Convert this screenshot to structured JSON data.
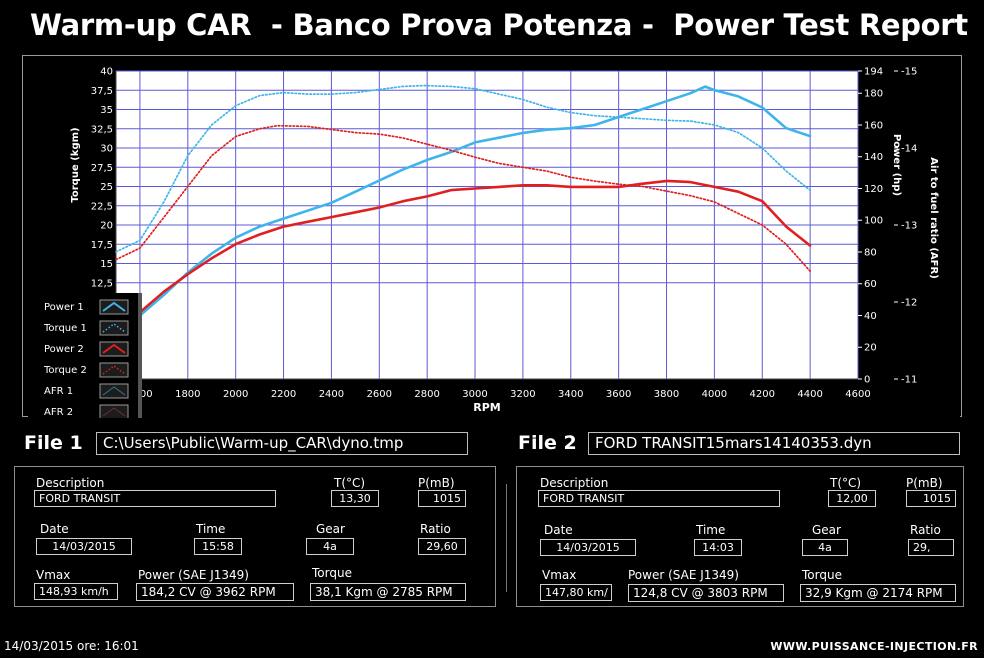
{
  "header": {
    "title": "Warm-up CAR  - Banco Prova Potenza -  Power Test Report"
  },
  "chart_data": {
    "type": "line",
    "xlabel": "RPM",
    "x_ticks": [
      "1600",
      "1800",
      "2000",
      "2200",
      "2400",
      "2600",
      "2800",
      "3000",
      "3200",
      "3400",
      "3600",
      "3800",
      "4000",
      "4200",
      "4400",
      "4600"
    ],
    "xlim": [
      1500,
      4600
    ],
    "y_left": {
      "label": "Torque (kgm)",
      "lim": [
        0,
        40
      ],
      "ticks": [
        "12,5",
        "15",
        "17,5",
        "20",
        "22,5",
        "25",
        "27,5",
        "30",
        "32,5",
        "35",
        "37,5",
        "40"
      ]
    },
    "y_right1": {
      "label": "Power (hp)",
      "lim": [
        0,
        194
      ],
      "ticks": [
        "0",
        "20",
        "40",
        "60",
        "80",
        "100",
        "120",
        "140",
        "160",
        "180",
        "194"
      ]
    },
    "y_right2": {
      "label": "Air to fuel ratio (AFR)",
      "lim": [
        -11,
        -15
      ],
      "ticks": [
        "-11",
        "-12",
        "-13",
        "-14",
        "-15"
      ]
    },
    "grid": true,
    "legend_position": "bottom-left",
    "series": [
      {
        "name": "Power 1",
        "axis": "power",
        "color": "#3fb4ea",
        "style": "solid",
        "x": [
          1500,
          1600,
          1700,
          1800,
          1900,
          2000,
          2100,
          2200,
          2300,
          2400,
          2500,
          2600,
          2700,
          2800,
          2900,
          3000,
          3100,
          3200,
          3300,
          3400,
          3500,
          3600,
          3700,
          3800,
          3900,
          3962,
          4000,
          4100,
          4200,
          4300,
          4400
        ],
        "y": [
          33,
          40,
          53,
          67,
          79,
          89,
          96,
          101,
          106,
          111,
          118,
          125,
          132,
          138,
          143,
          149,
          152,
          155,
          157,
          158,
          160,
          165,
          170,
          175,
          180,
          184.2,
          182,
          178,
          171,
          158,
          153
        ]
      },
      {
        "name": "Torque 1",
        "axis": "torque",
        "color": "#3fb4ea",
        "style": "dotted",
        "x": [
          1500,
          1600,
          1700,
          1800,
          1900,
          2000,
          2100,
          2200,
          2300,
          2400,
          2500,
          2600,
          2700,
          2785,
          2900,
          3000,
          3100,
          3200,
          3300,
          3400,
          3500,
          3600,
          3700,
          3800,
          3900,
          4000,
          4100,
          4200,
          4300,
          4400
        ],
        "y": [
          16.5,
          18,
          23,
          29,
          33,
          35.5,
          36.8,
          37.2,
          37,
          37,
          37.2,
          37.6,
          38,
          38.1,
          38,
          37.7,
          37,
          36.3,
          35.3,
          34.6,
          34.2,
          34,
          33.8,
          33.6,
          33.5,
          33,
          32,
          30,
          27,
          24.5
        ]
      },
      {
        "name": "Power 2",
        "axis": "power",
        "color": "#e02020",
        "style": "solid",
        "x": [
          1500,
          1600,
          1700,
          1800,
          1900,
          2000,
          2100,
          2200,
          2300,
          2400,
          2500,
          2600,
          2700,
          2800,
          2900,
          3000,
          3100,
          3200,
          3300,
          3400,
          3500,
          3600,
          3700,
          3803,
          3900,
          4000,
          4100,
          4200,
          4300,
          4400
        ],
        "y": [
          34,
          42,
          55,
          66,
          76,
          85,
          91,
          96,
          99,
          102,
          105,
          108,
          112,
          115,
          119,
          120,
          121,
          122,
          122,
          121,
          121,
          121,
          123,
          124.8,
          124,
          121,
          118,
          112,
          96,
          84
        ]
      },
      {
        "name": "Torque 2",
        "axis": "torque",
        "color": "#e02020",
        "style": "dotted",
        "x": [
          1500,
          1600,
          1700,
          1800,
          1900,
          2000,
          2100,
          2174,
          2300,
          2400,
          2500,
          2600,
          2700,
          2800,
          2900,
          3000,
          3100,
          3200,
          3300,
          3400,
          3500,
          3600,
          3700,
          3800,
          3900,
          4000,
          4100,
          4200,
          4300,
          4400
        ],
        "y": [
          15.5,
          17,
          21,
          25,
          29,
          31.5,
          32.5,
          32.9,
          32.8,
          32.4,
          32,
          31.8,
          31.3,
          30.5,
          29.7,
          28.8,
          28,
          27.5,
          27,
          26.2,
          25.7,
          25.3,
          25,
          24.4,
          23.8,
          23,
          21.5,
          20,
          17.5,
          14
        ]
      }
    ],
    "legend_extra": [
      "AFR 1",
      "AFR 2"
    ]
  },
  "file1": {
    "label": "File 1",
    "path": "C:\\Users\\Public\\Warm-up_CAR\\dyno.tmp",
    "description_label": "Description",
    "description": "FORD TRANSIT",
    "temp_label": "T(°C)",
    "temp": "13,30",
    "pressure_label": "P(mB)",
    "pressure": "1015",
    "date_label": "Date",
    "date": "14/03/2015",
    "time_label": "Time",
    "time": "15:58",
    "gear_label": "Gear",
    "gear": "4a",
    "ratio_label": "Ratio",
    "ratio": "29,60",
    "vmax_label": "Vmax",
    "vmax": "148,93 km/h",
    "power_label": "Power (SAE J1349)",
    "power": "184,2 CV  @ 3962  RPM",
    "torque_label": "Torque",
    "torque": "38,1 Kgm  @ 2785  RPM"
  },
  "file2": {
    "label": "File 2",
    "path": "FORD TRANSIT15mars14140353.dyn",
    "description_label": "Description",
    "description": "FORD TRANSIT",
    "temp_label": "T(°C)",
    "temp": "12,00",
    "pressure_label": "P(mB)",
    "pressure": "1015",
    "date_label": "Date",
    "date": "14/03/2015",
    "time_label": "Time",
    "time": "14:03",
    "gear_label": "Gear",
    "gear": "4a",
    "ratio_label": "Ratio",
    "ratio": "29,",
    "vmax_label": "Vmax",
    "vmax": "147,80 km/",
    "power_label": "Power (SAE J1349)",
    "power": "124,8 CV  @ 3803  RPM",
    "torque_label": "Torque",
    "torque": "32,9 Kgm  @ 2174  RPM"
  },
  "footer": {
    "datetime": "14/03/2015  ore: 16:01",
    "website": "WWW.PUISSANCE-INJECTION.FR"
  }
}
